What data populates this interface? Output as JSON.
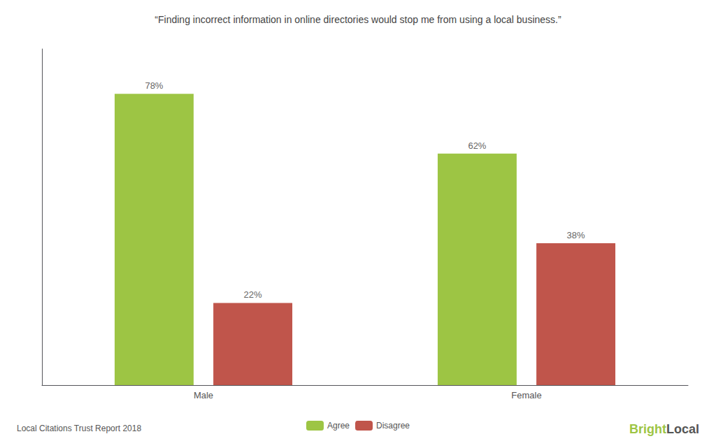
{
  "chart_data": {
    "type": "bar",
    "title": "“Finding incorrect information in online directories would stop me from using a local business.”",
    "categories": [
      "Male",
      "Female"
    ],
    "series": [
      {
        "name": "Agree",
        "color": "#9dc544",
        "values": [
          78,
          62
        ],
        "value_labels": [
          "78%",
          "62%"
        ]
      },
      {
        "name": "Disagree",
        "color": "#c0554b",
        "values": [
          22,
          38
        ],
        "value_labels": [
          "22%",
          "38%"
        ]
      }
    ],
    "ylim": [
      0,
      90
    ],
    "yticks": [],
    "tick_labels": "x",
    "grid": false,
    "legend": "bottom",
    "data_labels": true,
    "annotations": [
      {
        "text": "Local Citations Trust Report 2018",
        "color": "#555555"
      },
      {
        "text": "Bright",
        "color": "#9dc544"
      },
      {
        "text": "Local",
        "color": "#555555"
      }
    ]
  }
}
